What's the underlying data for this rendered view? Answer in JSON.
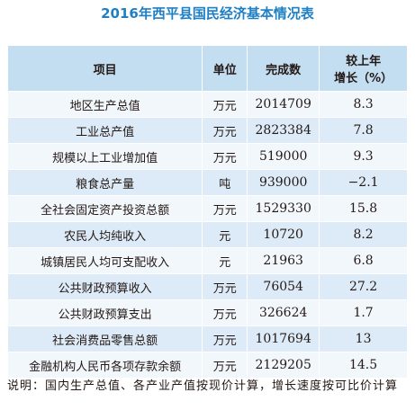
{
  "title": "2016年西平县国民经济基本情况表",
  "table": {
    "header": [
      "项目",
      "单位",
      "完成数",
      [
        "较上年",
        "增长（%）"
      ]
    ],
    "rows": [
      [
        "地区生产总值",
        "万元",
        "2014709",
        "8.3"
      ],
      [
        "工业总产值",
        "万元",
        "2823384",
        "7.8"
      ],
      [
        "规模以上工业增加值",
        "万元",
        "519000",
        "9.3"
      ],
      [
        "粮食总产量",
        "吨",
        "939000",
        "−2.1"
      ],
      [
        "全社会固定资产投资总额",
        "万元",
        "1529330",
        "15.8"
      ],
      [
        "农民人均纯收入",
        "元",
        "10720",
        "8.2"
      ],
      [
        "城镇居民人均可支配收入",
        "元",
        "21963",
        "6.8"
      ],
      [
        "公共财政预算收入",
        "万元",
        "76054",
        "27.2"
      ],
      [
        "公共财政预算支出",
        "万元",
        "326624",
        "1.7"
      ],
      [
        "社会消费品零售总额",
        "万元",
        "1017694",
        "13"
      ],
      [
        "金融机构人民币各项存款余额",
        "万元",
        "2129205",
        "14.5"
      ]
    ]
  },
  "note": "说明：国内生产总值、各产业产值按现价计算，增长速度按可比价计算"
}
